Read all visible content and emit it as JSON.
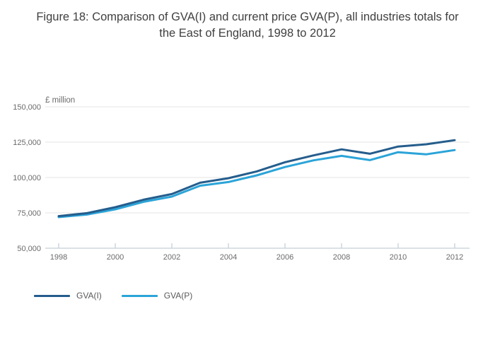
{
  "title": "Figure 18: Comparison of GVA(I) and current price GVA(P), all industries totals for the East of England, 1998 to 2012",
  "chart_data": {
    "type": "line",
    "title": "Figure 18: Comparison of GVA(I) and current price GVA(P), all industries totals for the East of England, 1998 to 2012",
    "unit_label": "£ million",
    "x": [
      1998,
      1999,
      2000,
      2001,
      2002,
      2003,
      2004,
      2005,
      2006,
      2007,
      2008,
      2009,
      2010,
      2011,
      2012
    ],
    "series": [
      {
        "name": "GVA(I)",
        "color": "#255D8C",
        "values": [
          72700,
          74800,
          79000,
          84300,
          88300,
          96300,
          99500,
          104300,
          110800,
          115600,
          119900,
          116800,
          121900,
          123500,
          126400
        ]
      },
      {
        "name": "GVA(P)",
        "color": "#2BA4D8",
        "values": [
          72000,
          73800,
          77500,
          82800,
          86500,
          94200,
          96800,
          101500,
          107400,
          112100,
          115300,
          112300,
          117900,
          116400,
          119400
        ]
      }
    ],
    "ylim": [
      50000,
      150000
    ],
    "yticks": [
      50000,
      75000,
      100000,
      125000,
      150000
    ],
    "ytick_labels": [
      "50,000",
      "75,000",
      "100,000",
      "125,000",
      "150,000"
    ],
    "xticks": [
      1998,
      2000,
      2002,
      2004,
      2006,
      2008,
      2010,
      2012
    ],
    "grid": true,
    "legend_position": "bottom-left",
    "grid_color": "#e4e4e4",
    "axis_color": "#c5cfd8",
    "tick_label_color": "#6b6b6b",
    "title_color": "#404040"
  }
}
